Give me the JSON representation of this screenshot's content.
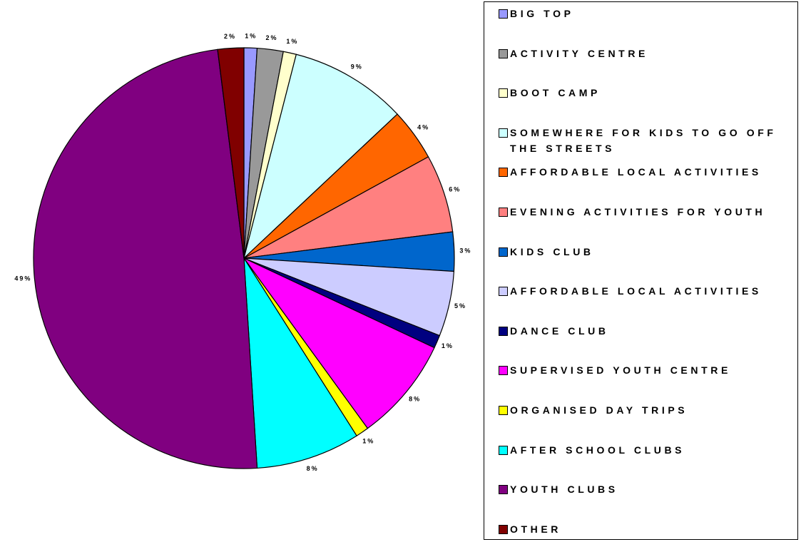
{
  "chart_data": {
    "type": "pie",
    "categories": [
      "BIG TOP",
      "ACTIVITY CENTRE",
      "BOOT CAMP",
      "SOMEWHERE FOR KIDS TO GO OFF THE STREETS",
      "AFFORDABLE LOCAL ACTIVITIES",
      "EVENING ACTIVITIES FOR YOUTH",
      "KIDS CLUB",
      "AFFORDABLE LOCAL ACTIVITIES",
      "DANCE CLUB",
      "SUPERVISED YOUTH CENTRE",
      "ORGANISED DAY TRIPS",
      "AFTER SCHOOL CLUBS",
      "YOUTH CLUBS",
      "OTHER"
    ],
    "values": [
      1,
      2,
      1,
      9,
      4,
      6,
      3,
      5,
      1,
      8,
      1,
      8,
      49,
      2
    ],
    "value_labels": [
      "1%",
      "2%",
      "1%",
      "9%",
      "4%",
      "6%",
      "3%",
      "5%",
      "1%",
      "8%",
      "1%",
      "8%",
      "49%",
      "2%"
    ],
    "colors": [
      "#9999ff",
      "#999999",
      "#ffffcc",
      "#ccffff",
      "#ff6600",
      "#ff8080",
      "#0066cc",
      "#ccccff",
      "#000080",
      "#ff00ff",
      "#ffff00",
      "#00ffff",
      "#800080",
      "#800000"
    ],
    "legend": "right"
  }
}
